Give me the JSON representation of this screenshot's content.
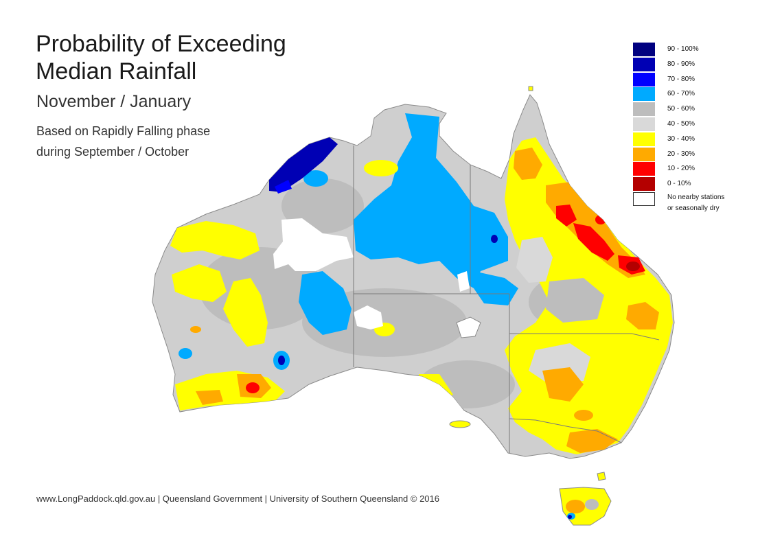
{
  "title_line1": "Probability of Exceeding",
  "title_line2": "Median Rainfall",
  "subtitle": "November / January",
  "desc_line1": "Based on Rapidly Falling phase",
  "desc_line2": "during September / October",
  "footer": "www.LongPaddock.qld.gov.au | Queensland Government | University of Southern Queensland © 2016",
  "legend": [
    {
      "label": "90 - 100%",
      "color": "#000080"
    },
    {
      "label": "80 - 90%",
      "color": "#0000b4"
    },
    {
      "label": "70 - 80%",
      "color": "#0000ff"
    },
    {
      "label": "60 - 70%",
      "color": "#00aaff"
    },
    {
      "label": "50 - 60%",
      "color": "#bdbdbd"
    },
    {
      "label": "40 - 50%",
      "color": "#d9d9d9"
    },
    {
      "label": "30 - 40%",
      "color": "#ffff00"
    },
    {
      "label": "20 - 30%",
      "color": "#ffaa00"
    },
    {
      "label": "10 - 20%",
      "color": "#ff0000"
    },
    {
      "label": "0 - 10%",
      "color": "#b40000"
    },
    {
      "label_line1": "No nearby stations",
      "label_line2": "or seasonally dry",
      "color": "#ffffff"
    }
  ]
}
